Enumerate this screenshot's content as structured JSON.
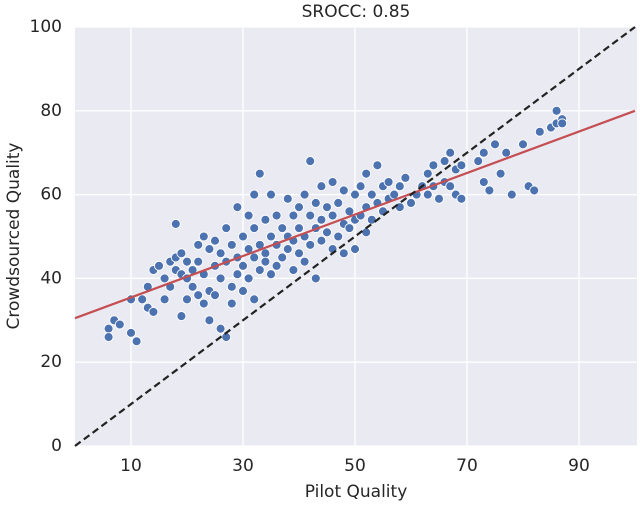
{
  "chart_data": {
    "type": "scatter",
    "title": "SROCC: 0.85",
    "x_label": "Pilot Quality",
    "y_label": "Crowdsourced Quality",
    "xlim": [
      0,
      100
    ],
    "ylim": [
      0,
      100
    ],
    "xticks": [
      10,
      30,
      50,
      70,
      90
    ],
    "yticks": [
      0,
      20,
      40,
      60,
      80,
      100
    ],
    "grid": true,
    "color": "#4c72b0",
    "x": [
      6,
      6,
      7,
      8,
      10,
      10,
      11,
      12,
      13,
      13,
      14,
      14,
      15,
      16,
      16,
      17,
      17,
      18,
      18,
      18,
      19,
      19,
      19,
      20,
      20,
      20,
      21,
      21,
      22,
      22,
      22,
      23,
      23,
      23,
      24,
      24,
      24,
      25,
      25,
      25,
      26,
      26,
      26,
      27,
      27,
      27,
      28,
      28,
      28,
      29,
      29,
      29,
      30,
      30,
      30,
      31,
      31,
      31,
      32,
      32,
      32,
      32,
      33,
      33,
      33,
      34,
      34,
      34,
      35,
      35,
      35,
      36,
      36,
      36,
      37,
      37,
      38,
      38,
      38,
      39,
      39,
      39,
      40,
      40,
      40,
      41,
      41,
      41,
      42,
      42,
      42,
      43,
      43,
      43,
      44,
      44,
      44,
      45,
      45,
      46,
      46,
      46,
      47,
      47,
      48,
      48,
      48,
      49,
      49,
      50,
      50,
      50,
      51,
      51,
      52,
      52,
      52,
      53,
      53,
      54,
      54,
      55,
      55,
      56,
      56,
      57,
      58,
      58,
      59,
      60,
      61,
      62,
      63,
      63,
      64,
      64,
      65,
      66,
      66,
      67,
      67,
      68,
      68,
      69,
      69,
      72,
      73,
      73,
      74,
      75,
      76,
      77,
      78,
      80,
      81,
      82,
      83,
      85,
      86,
      86,
      87,
      87
    ],
    "y": [
      28,
      26,
      30,
      29,
      27,
      35,
      25,
      35,
      38,
      33,
      42,
      32,
      43,
      35,
      40,
      44,
      38,
      53,
      45,
      42,
      41,
      31,
      46,
      44,
      40,
      35,
      42,
      38,
      48,
      44,
      36,
      50,
      41,
      34,
      47,
      37,
      30,
      49,
      43,
      36,
      46,
      40,
      28,
      52,
      44,
      26,
      48,
      38,
      34,
      57,
      45,
      41,
      50,
      43,
      37,
      55,
      47,
      40,
      60,
      52,
      45,
      35,
      65,
      48,
      42,
      54,
      46,
      44,
      60,
      50,
      41,
      55,
      48,
      43,
      52,
      45,
      59,
      50,
      47,
      55,
      49,
      42,
      57,
      52,
      46,
      60,
      50,
      44,
      68,
      55,
      48,
      58,
      52,
      40,
      62,
      54,
      49,
      57,
      51,
      63,
      55,
      47,
      58,
      50,
      61,
      53,
      46,
      56,
      52,
      60,
      54,
      47,
      62,
      55,
      65,
      57,
      51,
      60,
      54,
      67,
      58,
      62,
      56,
      63,
      59,
      60,
      62,
      57,
      64,
      58,
      60,
      62,
      65,
      60,
      67,
      62,
      59,
      68,
      63,
      70,
      62,
      66,
      60,
      67,
      59,
      68,
      63,
      70,
      61,
      72,
      65,
      70,
      60,
      72,
      62,
      61,
      75,
      76,
      80,
      77,
      78,
      77
    ],
    "fit_line": {
      "x": [
        0,
        100
      ],
      "values": [
        30.5,
        80
      ],
      "color": "#c44e52"
    },
    "identity_line": {
      "x": [
        0,
        100
      ],
      "values": [
        0,
        100
      ],
      "color": "#222222",
      "dashed": true
    }
  }
}
